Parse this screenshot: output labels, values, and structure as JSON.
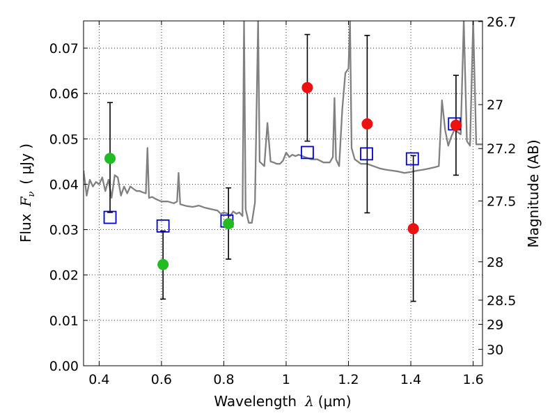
{
  "chart_data": {
    "type": "scatter",
    "x_axis": {
      "label": "Wavelength",
      "symbol": "λ",
      "unit": "(μm)",
      "range": [
        0.35,
        1.63
      ],
      "ticks": [
        {
          "value": 0.4,
          "label": "0.4"
        },
        {
          "value": 0.6,
          "label": "0.6"
        },
        {
          "value": 0.8,
          "label": "0.8"
        },
        {
          "value": 1.0,
          "label": "1"
        },
        {
          "value": 1.2,
          "label": "1.2"
        },
        {
          "value": 1.4,
          "label": "1.4"
        },
        {
          "value": 1.6,
          "label": "1.6"
        }
      ]
    },
    "y_axis": {
      "label": "Flux",
      "symbol": "F",
      "symbol_sub": "ν",
      "unit": "( μJy )",
      "range": [
        0.0,
        0.076
      ],
      "ticks": [
        {
          "value": 0.0,
          "label": "0.00"
        },
        {
          "value": 0.01,
          "label": "0.01"
        },
        {
          "value": 0.02,
          "label": "0.02"
        },
        {
          "value": 0.03,
          "label": "0.03"
        },
        {
          "value": 0.04,
          "label": "0.04"
        },
        {
          "value": 0.05,
          "label": "0.05"
        },
        {
          "value": 0.06,
          "label": "0.06"
        },
        {
          "value": 0.07,
          "label": "0.07"
        }
      ]
    },
    "y2_axis": {
      "label": "Magnitude (AB)",
      "ticks": [
        {
          "value": 26.7,
          "label": "26.7"
        },
        {
          "value": 27.0,
          "label": "27"
        },
        {
          "value": 27.2,
          "label": "27.2"
        },
        {
          "value": 27.5,
          "label": "27.5"
        },
        {
          "value": 28.0,
          "label": "28"
        },
        {
          "value": 28.5,
          "label": "28.5"
        },
        {
          "value": 29.0,
          "label": "29"
        },
        {
          "value": 30.0,
          "label": "30"
        }
      ]
    },
    "grid": true,
    "template_spectrum": {
      "color": "#808080",
      "points": [
        [
          0.35,
          0.043
        ],
        [
          0.36,
          0.0375
        ],
        [
          0.37,
          0.041
        ],
        [
          0.38,
          0.0395
        ],
        [
          0.39,
          0.0405
        ],
        [
          0.4,
          0.04
        ],
        [
          0.41,
          0.0415
        ],
        [
          0.42,
          0.0385
        ],
        [
          0.43,
          0.041
        ],
        [
          0.44,
          0.037
        ],
        [
          0.45,
          0.042
        ],
        [
          0.46,
          0.0415
        ],
        [
          0.47,
          0.0375
        ],
        [
          0.48,
          0.0395
        ],
        [
          0.49,
          0.038
        ],
        [
          0.5,
          0.0395
        ],
        [
          0.51,
          0.039
        ],
        [
          0.52,
          0.0385
        ],
        [
          0.53,
          0.0385
        ],
        [
          0.54,
          0.0382
        ],
        [
          0.55,
          0.038
        ],
        [
          0.555,
          0.048
        ],
        [
          0.56,
          0.037
        ],
        [
          0.57,
          0.0372
        ],
        [
          0.58,
          0.0368
        ],
        [
          0.59,
          0.0365
        ],
        [
          0.6,
          0.0362
        ],
        [
          0.62,
          0.0362
        ],
        [
          0.64,
          0.0358
        ],
        [
          0.65,
          0.0362
        ],
        [
          0.655,
          0.0425
        ],
        [
          0.66,
          0.0356
        ],
        [
          0.68,
          0.0352
        ],
        [
          0.7,
          0.035
        ],
        [
          0.72,
          0.0353
        ],
        [
          0.74,
          0.0348
        ],
        [
          0.76,
          0.0345
        ],
        [
          0.78,
          0.0342
        ],
        [
          0.79,
          0.0335
        ],
        [
          0.8,
          0.0338
        ],
        [
          0.81,
          0.0336
        ],
        [
          0.82,
          0.033
        ],
        [
          0.83,
          0.034
        ],
        [
          0.84,
          0.0335
        ],
        [
          0.85,
          0.0338
        ],
        [
          0.86,
          0.033
        ],
        [
          0.865,
          0.076
        ],
        [
          0.87,
          0.0345
        ],
        [
          0.88,
          0.0315
        ],
        [
          0.89,
          0.0315
        ],
        [
          0.9,
          0.036
        ],
        [
          0.91,
          0.076
        ],
        [
          0.915,
          0.045
        ],
        [
          0.93,
          0.044
        ],
        [
          0.94,
          0.0535
        ],
        [
          0.95,
          0.045
        ],
        [
          0.96,
          0.0448
        ],
        [
          0.97,
          0.0445
        ],
        [
          0.98,
          0.0445
        ],
        [
          0.99,
          0.0452
        ],
        [
          1.0,
          0.047
        ],
        [
          1.01,
          0.046
        ],
        [
          1.02,
          0.0465
        ],
        [
          1.03,
          0.0462
        ],
        [
          1.04,
          0.0465
        ],
        [
          1.06,
          0.046
        ],
        [
          1.08,
          0.0455
        ],
        [
          1.1,
          0.0455
        ],
        [
          1.12,
          0.0448
        ],
        [
          1.14,
          0.0448
        ],
        [
          1.15,
          0.046
        ],
        [
          1.155,
          0.059
        ],
        [
          1.16,
          0.0455
        ],
        [
          1.17,
          0.044
        ],
        [
          1.18,
          0.0565
        ],
        [
          1.19,
          0.0645
        ],
        [
          1.2,
          0.0655
        ],
        [
          1.205,
          0.076
        ],
        [
          1.21,
          0.048
        ],
        [
          1.22,
          0.0455
        ],
        [
          1.24,
          0.0445
        ],
        [
          1.26,
          0.0445
        ],
        [
          1.28,
          0.044
        ],
        [
          1.3,
          0.0435
        ],
        [
          1.32,
          0.0432
        ],
        [
          1.34,
          0.043
        ],
        [
          1.36,
          0.0428
        ],
        [
          1.38,
          0.0425
        ],
        [
          1.4,
          0.0427
        ],
        [
          1.42,
          0.043
        ],
        [
          1.44,
          0.0432
        ],
        [
          1.46,
          0.0435
        ],
        [
          1.48,
          0.0438
        ],
        [
          1.49,
          0.044
        ],
        [
          1.5,
          0.0585
        ],
        [
          1.51,
          0.052
        ],
        [
          1.52,
          0.0485
        ],
        [
          1.53,
          0.0505
        ],
        [
          1.54,
          0.052
        ],
        [
          1.55,
          0.0515
        ],
        [
          1.56,
          0.051
        ],
        [
          1.57,
          0.076
        ],
        [
          1.58,
          0.0495
        ],
        [
          1.59,
          0.0485
        ],
        [
          1.6,
          0.076
        ],
        [
          1.61,
          0.0488
        ],
        [
          1.63,
          0.0488
        ]
      ]
    },
    "observed_points": [
      {
        "x": 0.435,
        "y": 0.0457,
        "yerr_low": 0.0338,
        "yerr_high": 0.058,
        "color": "#22bb22"
      },
      {
        "x": 0.605,
        "y": 0.0223,
        "yerr_low": 0.0147,
        "yerr_high": 0.0297,
        "color": "#22bb22"
      },
      {
        "x": 0.815,
        "y": 0.0313,
        "yerr_low": 0.0235,
        "yerr_high": 0.0392,
        "color": "#22bb22"
      },
      {
        "x": 1.068,
        "y": 0.0613,
        "yerr_low": 0.0495,
        "yerr_high": 0.073,
        "color": "#ee1111"
      },
      {
        "x": 1.26,
        "y": 0.0533,
        "yerr_low": 0.0337,
        "yerr_high": 0.0728,
        "color": "#ee1111"
      },
      {
        "x": 1.408,
        "y": 0.0302,
        "yerr_low": 0.0142,
        "yerr_high": 0.0463,
        "color": "#ee1111"
      },
      {
        "x": 1.545,
        "y": 0.053,
        "yerr_low": 0.042,
        "yerr_high": 0.064,
        "color": "#ee1111"
      }
    ],
    "model_points": {
      "color": "#0000cc",
      "marker": "open-square",
      "points": [
        {
          "x": 0.435,
          "y": 0.0327
        },
        {
          "x": 0.605,
          "y": 0.0308
        },
        {
          "x": 0.81,
          "y": 0.0319
        },
        {
          "x": 1.068,
          "y": 0.047
        },
        {
          "x": 1.258,
          "y": 0.0467
        },
        {
          "x": 1.405,
          "y": 0.0456
        },
        {
          "x": 1.54,
          "y": 0.0533
        }
      ]
    }
  }
}
